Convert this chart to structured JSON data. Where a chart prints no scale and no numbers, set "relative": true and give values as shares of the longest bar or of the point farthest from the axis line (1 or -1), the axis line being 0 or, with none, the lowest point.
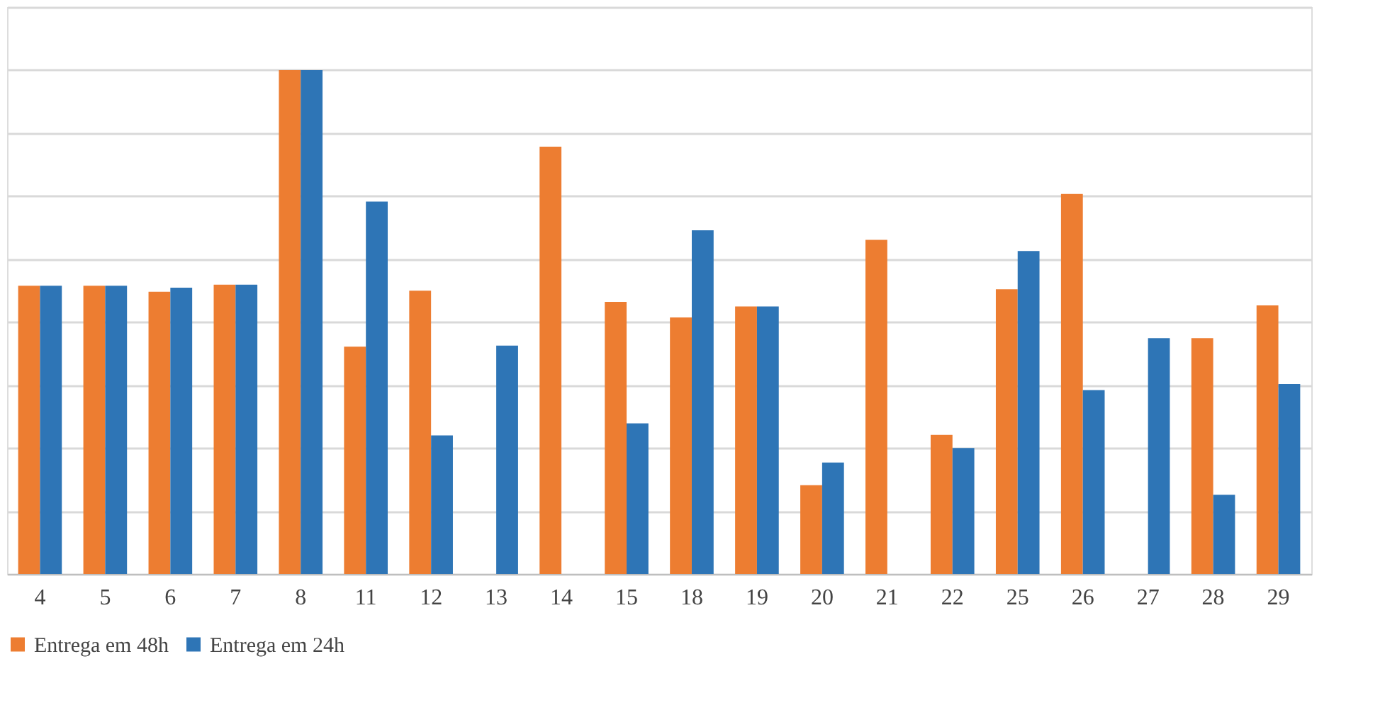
{
  "chart_data": {
    "type": "bar",
    "relative": true,
    "grid": "y",
    "legend": "bottom",
    "categories": [
      "4",
      "5",
      "6",
      "7",
      "8",
      "11",
      "12",
      "13",
      "14",
      "15",
      "18",
      "19",
      "20",
      "21",
      "22",
      "25",
      "26",
      "27",
      "28",
      "29"
    ],
    "series": [
      {
        "name": "Entrega em 48h",
        "color": "#ed7d31",
        "values": [
          0.572,
          0.572,
          0.56,
          0.574,
          1,
          0.451,
          0.562,
          null,
          0.848,
          0.54,
          0.509,
          0.531,
          0.176,
          0.663,
          0.276,
          0.565,
          0.754,
          null,
          0.468,
          0.533
        ]
      },
      {
        "name": "Entrega em 24h",
        "color": "#2e75b6",
        "values": [
          0.572,
          0.572,
          0.568,
          0.574,
          1,
          0.739,
          0.275,
          0.453,
          null,
          0.299,
          0.682,
          0.531,
          0.221,
          null,
          0.25,
          0.641,
          0.365,
          0.468,
          0.157,
          0.377
        ]
      }
    ]
  }
}
